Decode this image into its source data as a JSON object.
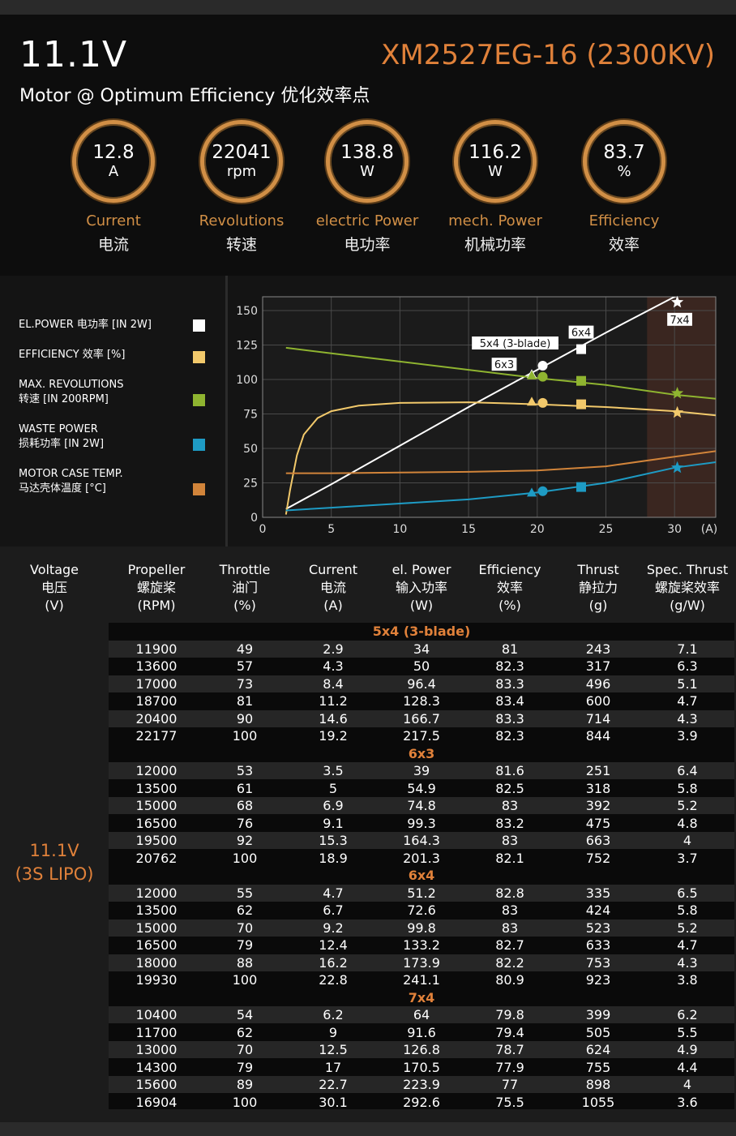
{
  "header": {
    "voltage": "11.1V",
    "model": "XM2527EG-16 (2300KV)",
    "subtitle": "Motor @ Optimum Efficiency  优化效率点"
  },
  "gauges": [
    {
      "value": "12.8",
      "unit": "A",
      "label_en": "Current",
      "label_zh": "电流"
    },
    {
      "value": "22041",
      "unit": "rpm",
      "label_en": "Revolutions",
      "label_zh": "转速"
    },
    {
      "value": "138.8",
      "unit": "W",
      "label_en": "electric Power",
      "label_zh": "电功率"
    },
    {
      "value": "116.2",
      "unit": "W",
      "label_en": "mech. Power",
      "label_zh": "机械功率"
    },
    {
      "value": "83.7",
      "unit": "%",
      "label_en": "Efficiency",
      "label_zh": "效率"
    }
  ],
  "legend": [
    {
      "line1": "EL.POWER 电功率 [IN 2W]",
      "line2": "",
      "color": "#ffffff"
    },
    {
      "line1": "EFFICIENCY 效率 [%]",
      "line2": "",
      "color": "#f2c96b"
    },
    {
      "line1": "MAX. REVOLUTIONS",
      "line2": "转速 [IN 200RPM]",
      "color": "#8fb430"
    },
    {
      "line1": "WASTE POWER",
      "line2": "损耗功率 [IN 2W]",
      "color": "#1e9bc4"
    },
    {
      "line1": "MOTOR CASE TEMP.",
      "line2": "马达壳体温度 [°C]",
      "color": "#d1843a"
    }
  ],
  "chart_data": {
    "type": "line",
    "xlabel": "(A)",
    "xlim": [
      0,
      33
    ],
    "ylim": [
      0,
      160
    ],
    "xticks": [
      0,
      5,
      10,
      15,
      20,
      25,
      30
    ],
    "yticks": [
      0,
      25,
      50,
      75,
      100,
      125,
      150
    ],
    "grid": true,
    "shaded_region_x": [
      28,
      33
    ],
    "series": [
      {
        "name": "EL.POWER 电功率 [IN 2W]",
        "color": "#ffffff",
        "x": [
          1.7,
          5,
          10,
          15,
          20,
          25,
          30,
          33
        ],
        "y": [
          6,
          24,
          52,
          80,
          107,
          134,
          160,
          168
        ]
      },
      {
        "name": "EFFICIENCY 效率 [%]",
        "color": "#f2c96b",
        "x": [
          1.7,
          2,
          2.5,
          3,
          4,
          5,
          7,
          10,
          15,
          20,
          25,
          30,
          33
        ],
        "y": [
          2,
          20,
          45,
          60,
          72,
          77,
          81,
          83,
          83.5,
          82,
          80,
          77,
          74
        ]
      },
      {
        "name": "MAX. REVOLUTIONS 转速 [IN 200RPM]",
        "color": "#8fb430",
        "x": [
          1.7,
          5,
          10,
          15,
          20,
          25,
          30,
          33
        ],
        "y": [
          123,
          119,
          113,
          107,
          101,
          96,
          89,
          86
        ]
      },
      {
        "name": "WASTE POWER 损耗功率 [IN 2W]",
        "color": "#1e9bc4",
        "x": [
          1.7,
          5,
          10,
          15,
          20,
          25,
          30,
          33
        ],
        "y": [
          5,
          7,
          10,
          13,
          18,
          25,
          36,
          40
        ]
      },
      {
        "name": "MOTOR CASE TEMP. 马达壳体温度 [°C]",
        "color": "#d1843a",
        "x": [
          1.7,
          5,
          10,
          15,
          20,
          25,
          30,
          33
        ],
        "y": [
          32,
          32,
          32.5,
          33,
          34,
          37,
          44,
          48
        ]
      }
    ],
    "points": [
      {
        "label": "5x4 (3-blade)",
        "x": 20.4,
        "marker": "circle",
        "el_power": 110,
        "efficiency": 83,
        "revolutions": 102,
        "waste": 19
      },
      {
        "label": "6x3",
        "x": 19.6,
        "marker": "triangle",
        "el_power": 104,
        "efficiency": 84,
        "revolutions": 103,
        "waste": 18
      },
      {
        "label": "6x4",
        "x": 23.2,
        "marker": "square",
        "el_power": 122,
        "efficiency": 82,
        "revolutions": 99,
        "waste": 22
      },
      {
        "label": "7x4",
        "x": 30.2,
        "marker": "star",
        "el_power": 156,
        "efficiency": 76,
        "revolutions": 90,
        "waste": 36
      }
    ]
  },
  "table": {
    "headers": [
      {
        "en": "Voltage",
        "zh": "电压",
        "unit": "(V)"
      },
      {
        "en": "Propeller",
        "zh": "螺旋桨",
        "unit": "(RPM)"
      },
      {
        "en": "Throttle",
        "zh": "油门",
        "unit": "(%)"
      },
      {
        "en": "Current",
        "zh": "电流",
        "unit": "(A)"
      },
      {
        "en": "el. Power",
        "zh": "输入功率",
        "unit": "(W)"
      },
      {
        "en": "Efficiency",
        "zh": "效率",
        "unit": "(%)"
      },
      {
        "en": "Thrust",
        "zh": "静拉力",
        "unit": "(g)"
      },
      {
        "en": "Spec. Thrust",
        "zh": "螺旋桨效率",
        "unit": "(g/W)"
      }
    ],
    "voltage_line1": "11.1V",
    "voltage_line2": "(3S LIPO)",
    "groups": [
      {
        "name": "5x4 (3-blade)",
        "rows": [
          [
            "11900",
            "49",
            "2.9",
            "34",
            "81",
            "243",
            "7.1"
          ],
          [
            "13600",
            "57",
            "4.3",
            "50",
            "82.3",
            "317",
            "6.3"
          ],
          [
            "17000",
            "73",
            "8.4",
            "96.4",
            "83.3",
            "496",
            "5.1"
          ],
          [
            "18700",
            "81",
            "11.2",
            "128.3",
            "83.4",
            "600",
            "4.7"
          ],
          [
            "20400",
            "90",
            "14.6",
            "166.7",
            "83.3",
            "714",
            "4.3"
          ],
          [
            "22177",
            "100",
            "19.2",
            "217.5",
            "82.3",
            "844",
            "3.9"
          ]
        ]
      },
      {
        "name": "6x3",
        "rows": [
          [
            "12000",
            "53",
            "3.5",
            "39",
            "81.6",
            "251",
            "6.4"
          ],
          [
            "13500",
            "61",
            "5",
            "54.9",
            "82.5",
            "318",
            "5.8"
          ],
          [
            "15000",
            "68",
            "6.9",
            "74.8",
            "83",
            "392",
            "5.2"
          ],
          [
            "16500",
            "76",
            "9.1",
            "99.3",
            "83.2",
            "475",
            "4.8"
          ],
          [
            "19500",
            "92",
            "15.3",
            "164.3",
            "83",
            "663",
            "4"
          ],
          [
            "20762",
            "100",
            "18.9",
            "201.3",
            "82.1",
            "752",
            "3.7"
          ]
        ]
      },
      {
        "name": "6x4",
        "rows": [
          [
            "12000",
            "55",
            "4.7",
            "51.2",
            "82.8",
            "335",
            "6.5"
          ],
          [
            "13500",
            "62",
            "6.7",
            "72.6",
            "83",
            "424",
            "5.8"
          ],
          [
            "15000",
            "70",
            "9.2",
            "99.8",
            "83",
            "523",
            "5.2"
          ],
          [
            "16500",
            "79",
            "12.4",
            "133.2",
            "82.7",
            "633",
            "4.7"
          ],
          [
            "18000",
            "88",
            "16.2",
            "173.9",
            "82.2",
            "753",
            "4.3"
          ],
          [
            "19930",
            "100",
            "22.8",
            "241.1",
            "80.9",
            "923",
            "3.8"
          ]
        ]
      },
      {
        "name": "7x4",
        "rows": [
          [
            "10400",
            "54",
            "6.2",
            "64",
            "79.8",
            "399",
            "6.2"
          ],
          [
            "11700",
            "62",
            "9",
            "91.6",
            "79.4",
            "505",
            "5.5"
          ],
          [
            "13000",
            "70",
            "12.5",
            "126.8",
            "78.7",
            "624",
            "4.9"
          ],
          [
            "14300",
            "79",
            "17",
            "170.5",
            "77.9",
            "755",
            "4.4"
          ],
          [
            "15600",
            "89",
            "22.7",
            "223.9",
            "77",
            "898",
            "4"
          ],
          [
            "16904",
            "100",
            "30.1",
            "292.6",
            "75.5",
            "1055",
            "3.6"
          ]
        ]
      }
    ]
  }
}
